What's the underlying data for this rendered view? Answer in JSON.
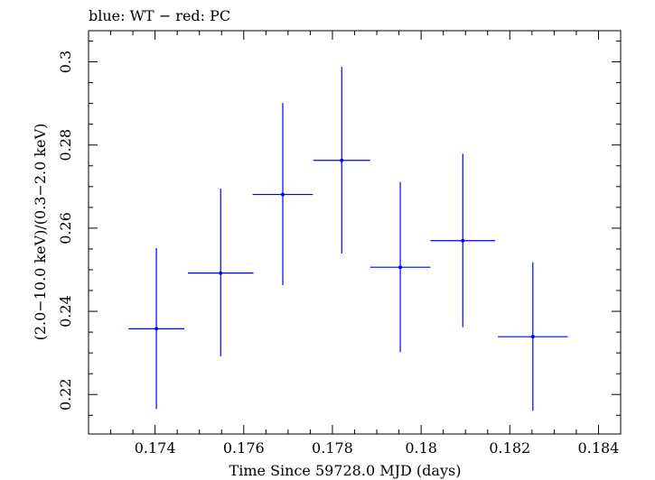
{
  "chart_data": {
    "type": "scatter",
    "title": "blue: WT − red: PC",
    "xlabel": "Time Since 59728.0 MJD (days)",
    "ylabel": "(2.0−10.0 keV)/(0.3−2.0 keV)",
    "xlim": [
      0.1725,
      0.1845
    ],
    "ylim": [
      0.2105,
      0.3075
    ],
    "x_ticks": [
      0.174,
      0.176,
      0.178,
      0.18,
      0.182,
      0.184
    ],
    "x_tick_labels": [
      "0.174",
      "0.176",
      "0.178",
      "0.18",
      "0.182",
      "0.184"
    ],
    "y_ticks": [
      0.22,
      0.24,
      0.26,
      0.28,
      0.3
    ],
    "y_tick_labels": [
      "0.22",
      "0.24",
      "0.26",
      "0.28",
      "0.3"
    ],
    "series": [
      {
        "name": "WT",
        "color": "#0000ff",
        "points": [
          {
            "x": 0.17403,
            "xerr": 0.00063,
            "y": 0.2358,
            "ylo": 0.2165,
            "yhi": 0.2552
          },
          {
            "x": 0.17548,
            "xerr": 0.00074,
            "y": 0.2492,
            "ylo": 0.2292,
            "yhi": 0.2695
          },
          {
            "x": 0.17688,
            "xerr": 0.00068,
            "y": 0.2681,
            "ylo": 0.2463,
            "yhi": 0.2901
          },
          {
            "x": 0.17821,
            "xerr": 0.00064,
            "y": 0.2763,
            "ylo": 0.2539,
            "yhi": 0.2988
          },
          {
            "x": 0.17953,
            "xerr": 0.00068,
            "y": 0.2506,
            "ylo": 0.2302,
            "yhi": 0.2711
          },
          {
            "x": 0.18094,
            "xerr": 0.00073,
            "y": 0.257,
            "ylo": 0.2362,
            "yhi": 0.2779
          },
          {
            "x": 0.18252,
            "xerr": 0.00079,
            "y": 0.2339,
            "ylo": 0.2161,
            "yhi": 0.2518
          }
        ]
      }
    ]
  }
}
